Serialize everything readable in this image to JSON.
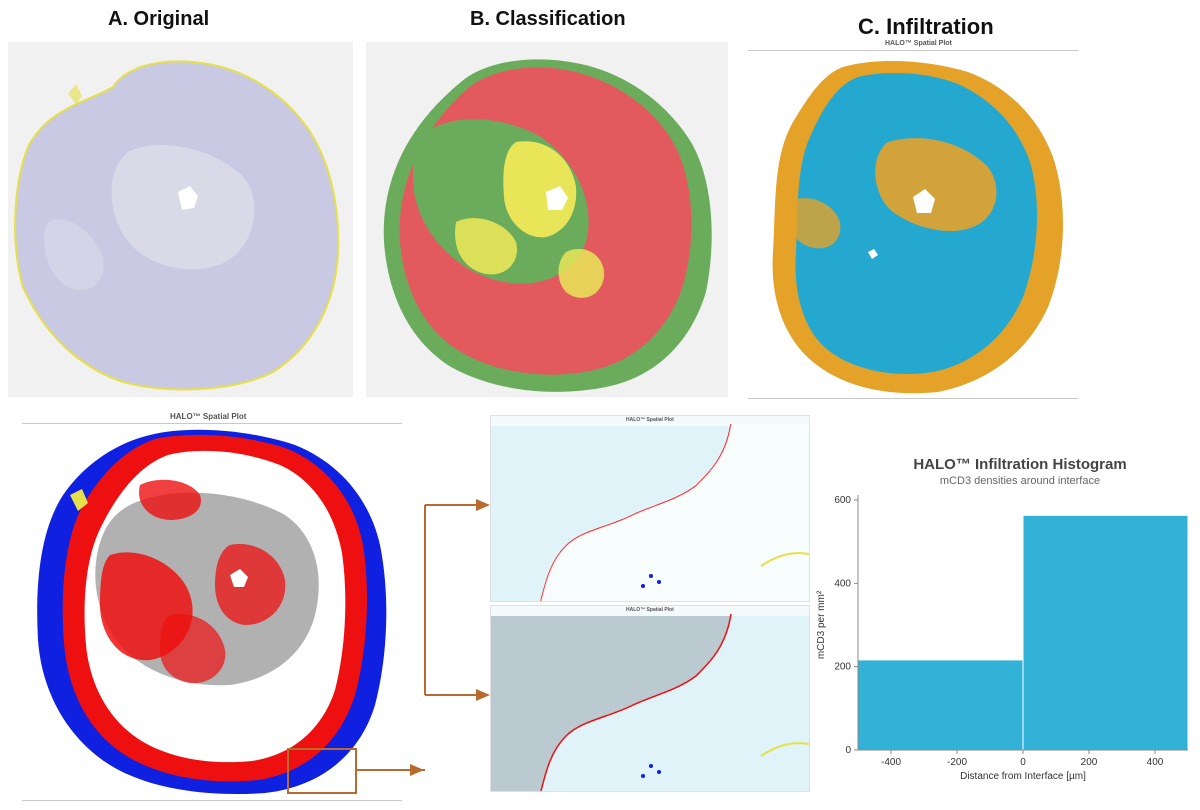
{
  "panels": {
    "original": {
      "title": "A. Original"
    },
    "classification": {
      "title": "B. Classification"
    },
    "infiltration": {
      "title": "C. Infiltration",
      "plot_label": "HALO™ Spatial Plot"
    }
  },
  "spatial_plot": {
    "title": "HALO™ Spatial Plot"
  },
  "zoom_plots": {
    "top_label": "HALO™ Spatial Plot",
    "bottom_label": "HALO™ Spatial Plot"
  },
  "colors": {
    "tissue_stain": "#c9c9e3",
    "outline_yellow": "#e6e04a",
    "class_red": "#e35a5e",
    "class_green": "#6aac5c",
    "class_yellow": "#e8e658",
    "infil_blue": "#25a8d0",
    "infil_orange": "#e4a229",
    "spatial_red": "#ee1010",
    "spatial_gray": "#a3a3a3",
    "spatial_blue": "#1020e0",
    "arrow_brown": "#b86b2e",
    "histogram_bar": "#32b2d6"
  },
  "chart_data": {
    "type": "bar",
    "title": "HALO™ Infiltration Histogram",
    "subtitle": "mCD3 densities around interface",
    "xlabel": "Distance from Interface [µm]",
    "ylabel": "mCD3 per mm²",
    "bins": [
      {
        "from": -500,
        "to": 0,
        "value": 215
      },
      {
        "from": 0,
        "to": 500,
        "value": 562
      }
    ],
    "xlim": [
      -500,
      500
    ],
    "ylim": [
      0,
      600
    ],
    "xticks": [
      -400,
      -200,
      0,
      200,
      400
    ],
    "yticks": [
      0,
      200,
      400,
      600
    ],
    "grid": false,
    "legend": "none"
  }
}
